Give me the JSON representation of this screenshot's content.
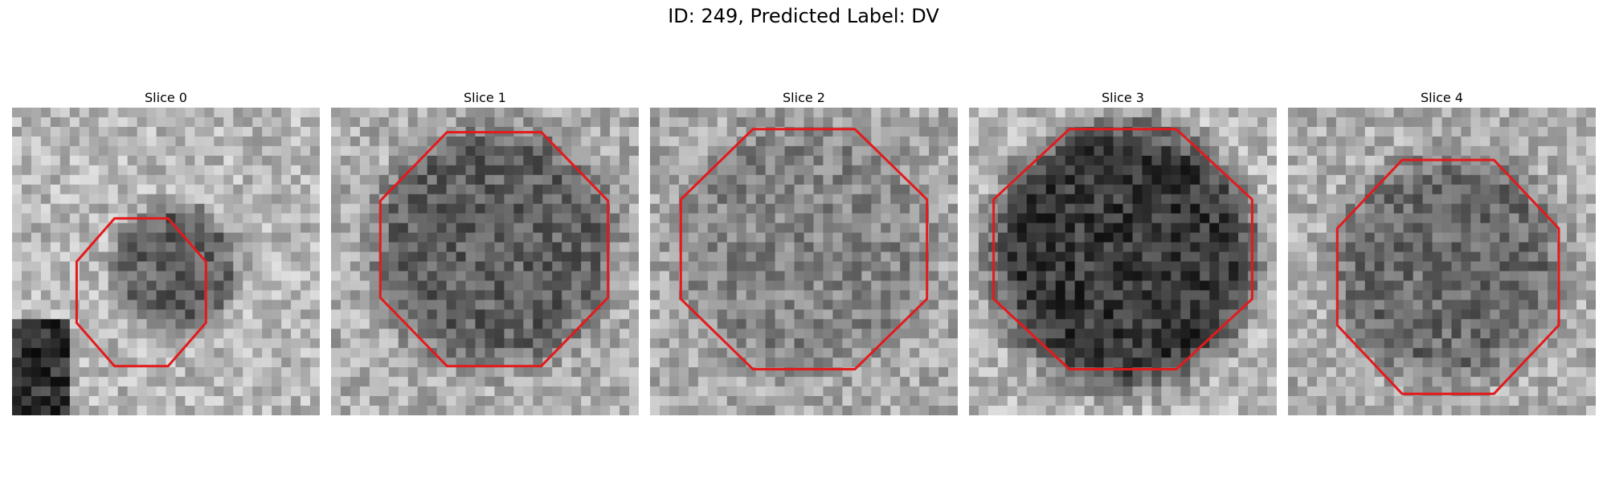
{
  "figure": {
    "title": "ID: 249, Predicted Label: DV"
  },
  "slices": [
    {
      "title": "Slice 0"
    },
    {
      "title": "Slice 1"
    },
    {
      "title": "Slice 2"
    },
    {
      "title": "Slice 3"
    },
    {
      "title": "Slice 4"
    }
  ],
  "colors": {
    "contour": "#e31a1c",
    "background": "#ffffff"
  }
}
